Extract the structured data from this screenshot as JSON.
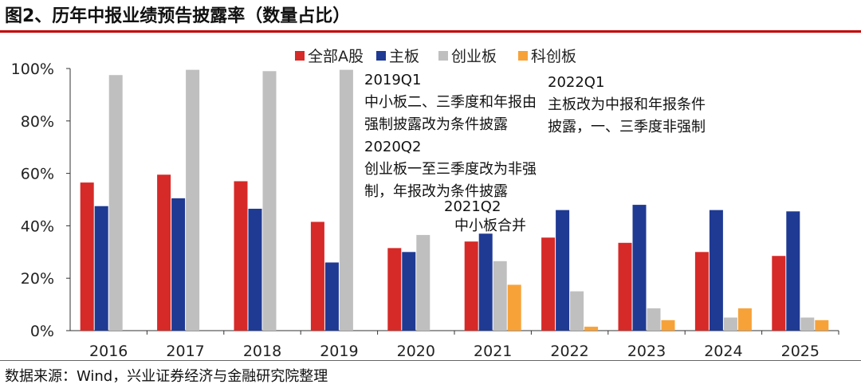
{
  "title": "图2、历年中报业绩预告披露率（数量占比）",
  "source": "数据来源：Wind，兴业证券经济与金融研究院整理",
  "colors": {
    "全部A股": "#d62a28",
    "主板": "#1f3a93",
    "创业板": "#bfbfbf",
    "科创板": "#f7a239"
  },
  "chart_data": {
    "type": "bar",
    "categories": [
      "2016",
      "2017",
      "2018",
      "2019",
      "2020",
      "2021",
      "2022",
      "2023",
      "2024",
      "2025"
    ],
    "series": [
      {
        "name": "全部A股",
        "values": [
          56.5,
          59.5,
          57,
          41.5,
          31.5,
          34,
          35.5,
          33.5,
          30,
          28.5
        ]
      },
      {
        "name": "主板",
        "values": [
          47.5,
          50.5,
          46.5,
          26,
          30,
          37,
          46,
          48,
          46,
          45.5
        ]
      },
      {
        "name": "创业板",
        "values": [
          97.5,
          99.5,
          99,
          99.5,
          36.5,
          26.5,
          15,
          8.5,
          5,
          5
        ]
      },
      {
        "name": "科创板",
        "values": [
          null,
          null,
          null,
          null,
          null,
          17.5,
          1.5,
          4,
          8.5,
          4
        ]
      }
    ],
    "ytick_labels": [
      "0%",
      "20%",
      "40%",
      "60%",
      "80%",
      "100%"
    ],
    "ylim": [
      0,
      100
    ],
    "legend": [
      "全部A股",
      "主板",
      "创业板",
      "科创板"
    ],
    "legend_position": "top",
    "grid": false,
    "annotations": [
      {
        "id": "a2019q1",
        "lines": [
          "2019Q1",
          "中小板二、三季度和年报由",
          "强制披露改为条件披露"
        ]
      },
      {
        "id": "a2020q2",
        "lines": [
          "2020Q2",
          "创业板一至三季度改为非强",
          "制，年报改为条件披露"
        ]
      },
      {
        "id": "a2021q2",
        "lines": [
          "2021Q2",
          "中小板合并"
        ]
      },
      {
        "id": "a2022q1",
        "lines": [
          "2022Q1",
          "主板改为中报和年报条件",
          "披露，一、三季度非强制"
        ]
      }
    ]
  }
}
